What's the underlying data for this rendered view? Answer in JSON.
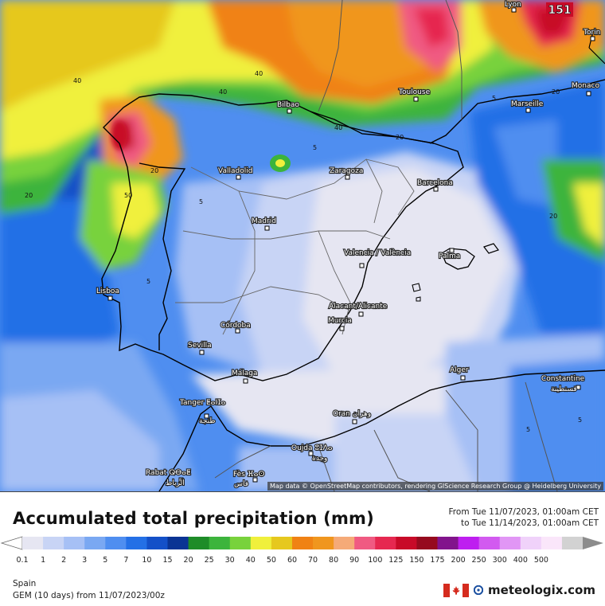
{
  "map": {
    "cities": [
      {
        "name": "Lyon"
      },
      {
        "name": "Torin"
      },
      {
        "name": "Monaco"
      },
      {
        "name": "Marseille"
      },
      {
        "name": "Toulouse"
      },
      {
        "name": "Bilbao"
      },
      {
        "name": "Zaragoza"
      },
      {
        "name": "Barcelona"
      },
      {
        "name": "Valladolid"
      },
      {
        "name": "Madrid"
      },
      {
        "name": "Valencia / València"
      },
      {
        "name": "Palma"
      },
      {
        "name": "Lisboa"
      },
      {
        "name": "Alacant/Alicante"
      },
      {
        "name": "Murcia"
      },
      {
        "name": "Córdoba"
      },
      {
        "name": "Sevilla"
      },
      {
        "name": "Málaga"
      },
      {
        "name": "Alger"
      },
      {
        "name": "Constantine"
      },
      {
        "name": "قسنطينة"
      },
      {
        "name": "Tanger ⵟⴰⵏⵊⴰ"
      },
      {
        "name": "طنجة"
      },
      {
        "name": "Oran وهران"
      },
      {
        "name": "Oujda ⵓⵊⴷⴰ"
      },
      {
        "name": "وجدة"
      },
      {
        "name": "Rabat ⵕⴱⴰⵟ"
      },
      {
        "name": "الرباط"
      },
      {
        "name": "Fès ⴼⴰⵙ"
      },
      {
        "name": "فاس"
      }
    ],
    "contour_labels": [
      "40",
      "40",
      "40",
      "40",
      "20",
      "20",
      "5",
      "20",
      "20",
      "5",
      "5",
      "50",
      "20",
      "5",
      "5",
      "5"
    ],
    "max_marker": "151",
    "attribution": "Map data © OpenStreetMap contributors, rendering GIScience Research Group @ Heidelberg University"
  },
  "legend": {
    "title": "Accumulated total precipitation (mm)",
    "period_from": "From Tue 11/07/2023, 01:00am CET",
    "period_to": "to Tue 11/14/2023, 01:00am CET",
    "region": "Spain",
    "model": "GEM (10 days) from 11/07/2023/00z",
    "brand": "meteologix.com",
    "scale": [
      {
        "label": "0.1",
        "color": "#e6e6f2"
      },
      {
        "label": "1",
        "color": "#c8d4f5"
      },
      {
        "label": "2",
        "color": "#a6c0f5"
      },
      {
        "label": "3",
        "color": "#7aa8f2"
      },
      {
        "label": "5",
        "color": "#4f8ef0"
      },
      {
        "label": "7",
        "color": "#2470e6"
      },
      {
        "label": "10",
        "color": "#1450c8"
      },
      {
        "label": "15",
        "color": "#0a3494"
      },
      {
        "label": "20",
        "color": "#1e8c28"
      },
      {
        "label": "25",
        "color": "#3cb43c"
      },
      {
        "label": "30",
        "color": "#78d23c"
      },
      {
        "label": "40",
        "color": "#f0f03c"
      },
      {
        "label": "50",
        "color": "#e6c81e"
      },
      {
        "label": "60",
        "color": "#f08214"
      },
      {
        "label": "70",
        "color": "#f0961e"
      },
      {
        "label": "80",
        "color": "#f5aa78"
      },
      {
        "label": "90",
        "color": "#f05a82"
      },
      {
        "label": "100",
        "color": "#e62850"
      },
      {
        "label": "125",
        "color": "#c80a28"
      },
      {
        "label": "150",
        "color": "#960a1e"
      },
      {
        "label": "175",
        "color": "#82148c"
      },
      {
        "label": "200",
        "color": "#be1ef0"
      },
      {
        "label": "250",
        "color": "#d25af0"
      },
      {
        "label": "300",
        "color": "#e196f5"
      },
      {
        "label": "400",
        "color": "#f0d2fa"
      },
      {
        "label": "500",
        "color": "#fae6fa"
      },
      {
        "label": "",
        "color": "#d2d2d2"
      }
    ]
  }
}
